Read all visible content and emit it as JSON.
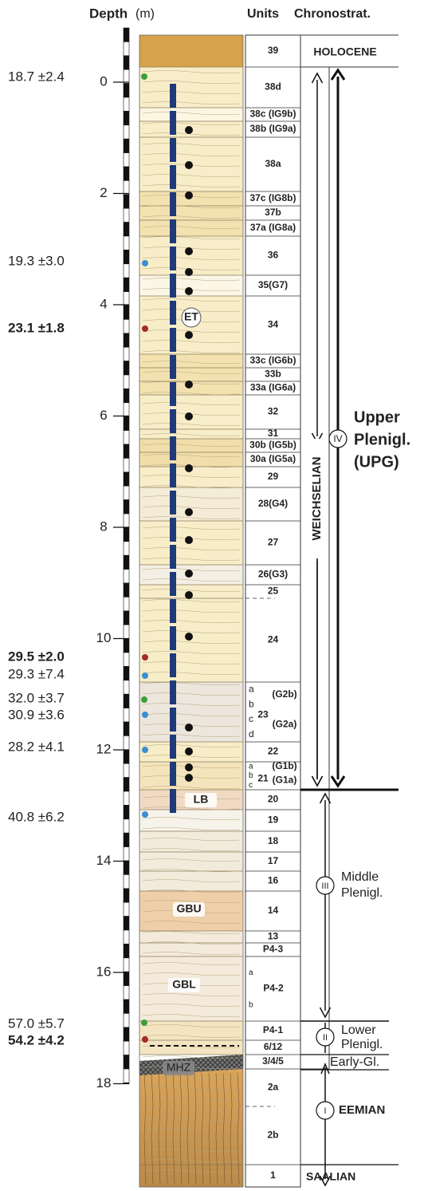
{
  "header": {
    "depth_title": "Depth",
    "depth_unit": "(m)",
    "units_title": "Units",
    "chrono_title": "Chronostrat."
  },
  "depth_axis": {
    "ticks": [
      0,
      2,
      4,
      6,
      8,
      10,
      12,
      14,
      16,
      18
    ]
  },
  "dates": [
    {
      "label": "18.7 ±2.4",
      "bold": false
    },
    {
      "label": "19.3 ±3.0",
      "bold": false
    },
    {
      "label": "23.1 ±1.8",
      "bold": true
    },
    {
      "label": "29.5 ±2.0",
      "bold": true
    },
    {
      "label": "29.3 ±7.4",
      "bold": false
    },
    {
      "label": "32.0 ±3.7",
      "bold": false
    },
    {
      "label": "30.9 ±3.6",
      "bold": false
    },
    {
      "label": "28.2 ±4.1",
      "bold": false
    },
    {
      "label": "40.8 ±6.2",
      "bold": false
    },
    {
      "label": "57.0 ±5.7",
      "bold": false
    },
    {
      "label": "54.2 ±4.2",
      "bold": true
    }
  ],
  "units": [
    {
      "label": "39"
    },
    {
      "label": "38d"
    },
    {
      "label": "38c (IG9b)"
    },
    {
      "label": "38b (IG9a)"
    },
    {
      "label": "38a"
    },
    {
      "label": "37c (IG8b)"
    },
    {
      "label": "37b"
    },
    {
      "label": "37a (IG8a)"
    },
    {
      "label": "36"
    },
    {
      "label": "35(G7)"
    },
    {
      "label": "34"
    },
    {
      "label": "33c (IG6b)"
    },
    {
      "label": "33b"
    },
    {
      "label": "33a (IG6a)"
    },
    {
      "label": "32"
    },
    {
      "label": "31"
    },
    {
      "label": "30b (IG5b)"
    },
    {
      "label": "30a (IG5a)"
    },
    {
      "label": "29"
    },
    {
      "label": "28(G4)"
    },
    {
      "label": "27"
    },
    {
      "label": "26(G3)"
    },
    {
      "label": "25"
    },
    {
      "label": "24"
    },
    {
      "label": "23",
      "sub": [
        "a",
        "b",
        "c",
        "d"
      ],
      "notes": [
        "(G2b)",
        "(G2a)"
      ]
    },
    {
      "label": "22"
    },
    {
      "label": "21",
      "sub": [
        "a",
        "b",
        "c"
      ],
      "notes": [
        "(G1b)",
        "(G1a)"
      ]
    },
    {
      "label": "20"
    },
    {
      "label": "19"
    },
    {
      "label": "18"
    },
    {
      "label": "17"
    },
    {
      "label": "16"
    },
    {
      "label": "14"
    },
    {
      "label": "13"
    },
    {
      "label": "P4-3"
    },
    {
      "label": "P4-2",
      "sub": [
        "a",
        "b"
      ]
    },
    {
      "label": "P4-1"
    },
    {
      "label": "6/12"
    },
    {
      "label": "3/4/5"
    },
    {
      "label": "2a"
    },
    {
      "label": "2b"
    },
    {
      "label": "1"
    }
  ],
  "log_labels": [
    "ET",
    "LB",
    "GBU",
    "GBL",
    "MHZ"
  ],
  "chronostrat": {
    "holocene": "HOLOCENE",
    "weichselian": "WEICHSELIAN",
    "upg": {
      "numeral": "IV",
      "lines": [
        "Upper",
        "Plenigl.",
        "(UPG)"
      ]
    },
    "middle": {
      "numeral": "III",
      "lines": [
        "Middle",
        "Plenigl."
      ]
    },
    "lower": {
      "numeral": "II",
      "lines": [
        "Lower",
        "Plenigl."
      ]
    },
    "early": "Early-Gl.",
    "eemian": {
      "numeral": "I",
      "label": "EEMIAN"
    },
    "saalian": "SAALIAN"
  }
}
